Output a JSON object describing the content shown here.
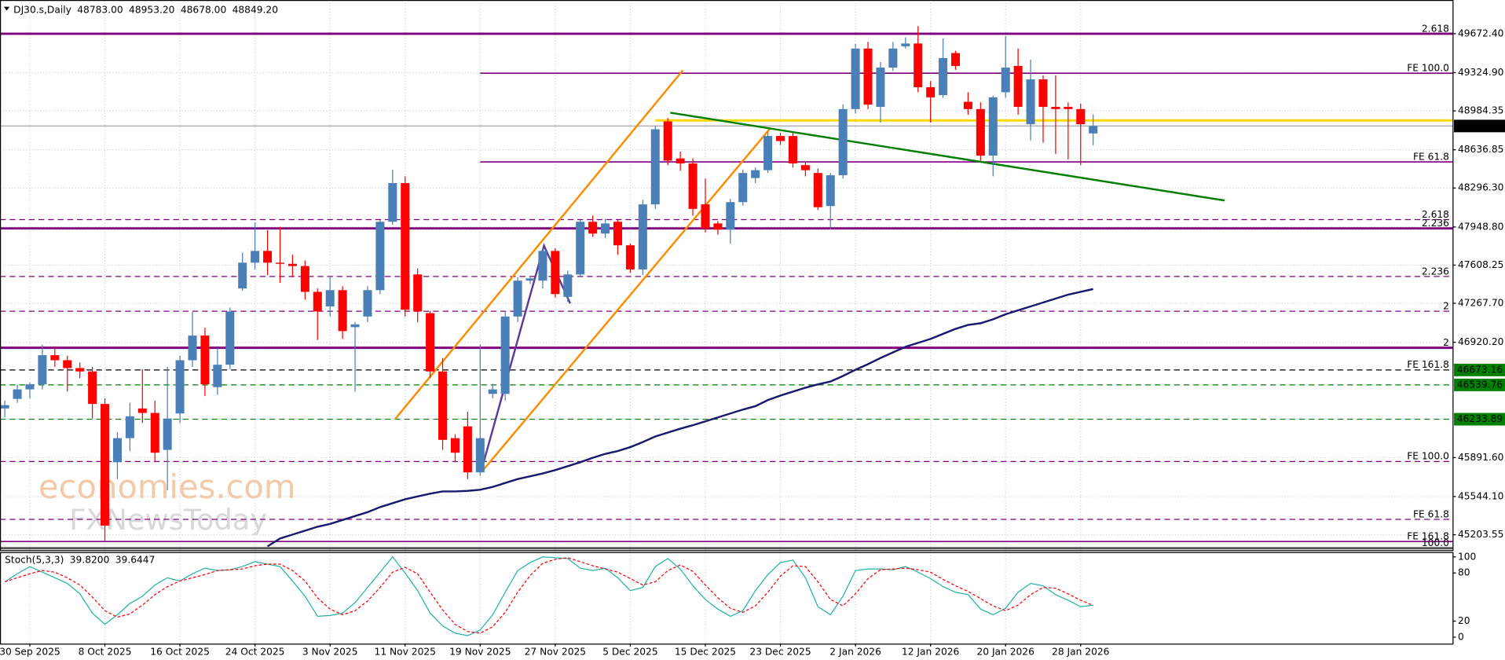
{
  "chart_data": [
    {
      "type": "candlestick",
      "title": "DJ30.s,Daily",
      "ohlc_labels": [
        {
          "value": 48783,
          "label": "48783.00"
        },
        {
          "value": 48953.2,
          "label": "48953.20"
        },
        {
          "value": 48678,
          "label": "48678.00"
        },
        {
          "value": 48849.2,
          "label": "48849.20"
        }
      ],
      "watermark": [
        "economies.com",
        "FXNewsToday"
      ],
      "up_color": "#4a7fb8",
      "down_color": "#ff0000",
      "grid": true,
      "ylim": [
        45066,
        49973
      ],
      "yticks": [
        {
          "value": 49672.4,
          "label": "49672.40"
        },
        {
          "value": 49324.9,
          "label": "49324.90"
        },
        {
          "value": 48984.35,
          "label": "48984.35"
        },
        {
          "value": 48636.85,
          "label": "48636.85"
        },
        {
          "value": 48296.3,
          "label": "48296.30"
        },
        {
          "value": 47948.8,
          "label": "47948.80"
        },
        {
          "value": 47608.25,
          "label": "47608.25"
        },
        {
          "value": 47267.7,
          "label": "47267.70"
        },
        {
          "value": 46920.2,
          "label": "46920.20"
        },
        {
          "value": 45891.6,
          "label": "45891.60"
        },
        {
          "value": 45544.1,
          "label": "45544.10"
        },
        {
          "value": 45203.55,
          "label": "45203.55"
        }
      ],
      "categories": [
        null,
        null,
        "30 Sep 2025",
        null,
        null,
        null,
        null,
        null,
        "8 Oct 2025",
        null,
        null,
        null,
        null,
        null,
        "16 Oct 2025",
        null,
        null,
        null,
        null,
        null,
        "24 Oct 2025",
        null,
        null,
        null,
        null,
        null,
        "3 Nov 2025",
        null,
        null,
        null,
        null,
        null,
        "11 Nov 2025",
        null,
        null,
        null,
        null,
        null,
        "19 Nov 2025",
        null,
        null,
        null,
        null,
        null,
        "27 Nov 2025",
        null,
        null,
        null,
        null,
        null,
        "5 Dec 2025",
        null,
        null,
        null,
        null,
        null,
        "15 Dec 2025",
        null,
        null,
        null,
        null,
        null,
        "23 Dec 2025",
        null,
        null,
        null,
        null,
        null,
        "2 Jan 2026",
        null,
        null,
        null,
        null,
        null,
        "12 Jan 2026",
        null,
        null,
        null,
        null,
        null,
        "20 Jan 2026",
        null,
        null,
        null,
        null,
        null,
        "28 Jan 2026",
        null
      ],
      "open": [
        46330,
        46415,
        46500,
        46545,
        46805,
        46760,
        46690,
        46660,
        46370,
        45850,
        46065,
        46330,
        46290,
        45960,
        46285,
        46760,
        46980,
        46520,
        46720,
        47400,
        47630,
        47735,
        47630,
        47620,
        47600,
        47370,
        47240,
        47385,
        47055,
        47150,
        47385,
        47995,
        48340,
        47525,
        47180,
        46660,
        46065,
        46170,
        45760,
        46460,
        46460,
        47150,
        47470,
        47470,
        47735,
        47325,
        47525,
        47995,
        47890,
        47995,
        47785,
        47570,
        48150,
        48890,
        48560,
        48515,
        48150,
        47980,
        47925,
        48170,
        48385,
        48455,
        48760,
        48760,
        48500,
        48430,
        48135,
        48410,
        49000,
        49540,
        49020,
        49370,
        49560,
        49585,
        49195,
        49125,
        49500,
        49065,
        49000,
        48585,
        49150,
        49385,
        48865,
        49265,
        49020,
        49020,
        49000,
        48783
      ],
      "high": [
        46400,
        46540,
        46560,
        46900,
        46880,
        46800,
        46740,
        46700,
        46420,
        46120,
        46380,
        46680,
        46400,
        46700,
        46800,
        47190,
        47050,
        46870,
        47230,
        47720,
        47990,
        47920,
        47950,
        47700,
        47650,
        47400,
        47500,
        47420,
        47100,
        47420,
        48010,
        48460,
        48400,
        47580,
        47200,
        46780,
        46100,
        46300,
        46900,
        46550,
        47200,
        47500,
        47510,
        47760,
        47760,
        47560,
        48010,
        48050,
        48020,
        48010,
        47800,
        48190,
        48850,
        48920,
        48620,
        48560,
        48380,
        48000,
        48200,
        48460,
        48480,
        48800,
        48790,
        48790,
        48530,
        48470,
        48430,
        49040,
        49580,
        49600,
        49420,
        49600,
        49640,
        49740,
        49250,
        49630,
        49520,
        49150,
        49060,
        49120,
        49650,
        49540,
        49440,
        49300,
        49300,
        49060,
        49050,
        48953.2
      ],
      "low": [
        46250,
        46380,
        46420,
        46500,
        46700,
        46480,
        46600,
        46240,
        45150,
        45700,
        45950,
        46200,
        45850,
        45600,
        46200,
        46700,
        46440,
        46450,
        46680,
        47380,
        47570,
        47520,
        47450,
        47500,
        47300,
        46940,
        47150,
        46950,
        46480,
        47100,
        47350,
        47970,
        47150,
        47100,
        46600,
        45960,
        45850,
        45700,
        45730,
        46420,
        46400,
        47100,
        47440,
        47400,
        47320,
        47280,
        47500,
        47860,
        47850,
        47700,
        47540,
        47520,
        48110,
        48500,
        48450,
        48050,
        47900,
        47880,
        47800,
        48140,
        48340,
        48430,
        48680,
        48480,
        48400,
        48100,
        47930,
        48380,
        48960,
        49000,
        48880,
        49340,
        49540,
        49150,
        48880,
        49100,
        49350,
        48950,
        48540,
        48400,
        49100,
        48950,
        48720,
        48700,
        48600,
        48550,
        48500,
        48678
      ],
      "close": [
        46360,
        46500,
        46545,
        46805,
        46760,
        46690,
        46660,
        46370,
        45285,
        46065,
        46260,
        46290,
        45935,
        46240,
        46760,
        46980,
        46545,
        46720,
        47195,
        47630,
        47735,
        47630,
        47620,
        47600,
        47370,
        47195,
        47385,
        47020,
        47080,
        47385,
        47995,
        48340,
        47210,
        47195,
        46660,
        46050,
        45935,
        45760,
        46065,
        46500,
        47150,
        47470,
        47490,
        47735,
        47350,
        47525,
        47995,
        47890,
        47980,
        47785,
        47570,
        48150,
        48820,
        48540,
        48515,
        48110,
        47935,
        47925,
        48170,
        48430,
        48455,
        48760,
        48715,
        48515,
        48455,
        48125,
        48410,
        49000,
        49540,
        49040,
        49370,
        49540,
        49585,
        49195,
        49105,
        49455,
        49385,
        49000,
        48585,
        49105,
        49370,
        49020,
        49265,
        49020,
        49000,
        49000,
        48865,
        48849.2
      ],
      "ma": {
        "color": "#191970",
        "values": [
          null,
          null,
          null,
          null,
          null,
          null,
          null,
          null,
          null,
          null,
          null,
          null,
          null,
          null,
          null,
          null,
          null,
          null,
          null,
          null,
          null,
          45100,
          45170,
          45205,
          45240,
          45275,
          45300,
          45335,
          45370,
          45405,
          45450,
          45485,
          45520,
          45545,
          45570,
          45590,
          45590,
          45595,
          45605,
          45630,
          45665,
          45700,
          45725,
          45750,
          45780,
          45815,
          45850,
          45890,
          45925,
          45950,
          45985,
          46030,
          46080,
          46115,
          46150,
          46180,
          46215,
          46250,
          46285,
          46320,
          46350,
          46405,
          46445,
          46480,
          46515,
          46545,
          46570,
          46620,
          46675,
          46725,
          46780,
          46830,
          46880,
          46915,
          46950,
          46995,
          47040,
          47075,
          47090,
          47125,
          47170,
          47205,
          47240,
          47275,
          47310,
          47345,
          47370,
          47395
        ]
      },
      "levels": [
        {
          "value": 49672,
          "label": "2.618",
          "color": "#800080",
          "style": "thick"
        },
        {
          "value": 49320,
          "label": "FE 100.0",
          "color": "#800080",
          "style": "solid",
          "from": 38
        },
        {
          "value": 48899,
          "color": "#ffd700",
          "style": "thick",
          "from": 52
        },
        {
          "value": 48849.2,
          "color": "#b0b0b0",
          "style": "solid",
          "tag": "48849.20",
          "tag_color": "#000000"
        },
        {
          "value": 48529,
          "label": "FE 61.8",
          "color": "#800080",
          "style": "solid",
          "from": 38
        },
        {
          "value": 48014,
          "label": "2.618",
          "color": "#800080",
          "style": "dashed"
        },
        {
          "value": 47936,
          "label": "2.236",
          "color": "#800080",
          "style": "thick"
        },
        {
          "value": 47507,
          "label": "2.236",
          "color": "#800080",
          "style": "dashed"
        },
        {
          "value": 47197,
          "label": "2",
          "color": "#800080",
          "style": "dashed"
        },
        {
          "value": 46871,
          "label": "2",
          "color": "#800080",
          "style": "thick"
        },
        {
          "value": 46673.16,
          "label": "FE 161.8",
          "color": "#000000",
          "style": "dashed",
          "tag": "46673.16",
          "tag_color": "#008000"
        },
        {
          "value": 46539.76,
          "color": "#008000",
          "style": "dashed",
          "tag": "46539.76",
          "tag_color": "#008000"
        },
        {
          "value": 46233.89,
          "color": "#008000",
          "style": "dashed",
          "tag": "46233.89",
          "tag_color": "#008000"
        },
        {
          "value": 45857,
          "label": "FE 100.0",
          "color": "#800080",
          "style": "dashed"
        },
        {
          "value": 45341,
          "label": "FE 61.8",
          "color": "#800080",
          "style": "dashed"
        },
        {
          "value": 45143,
          "label": "FE 161.8",
          "color": "#800080",
          "style": "solid"
        },
        {
          "value": 45083,
          "label": "100.0",
          "color": "#555555",
          "style": "thick"
        }
      ],
      "trendlines": [
        {
          "color": "#ff8c00",
          "x": [
            31.2,
            54.2
          ],
          "y": [
            46235,
            49346
          ]
        },
        {
          "color": "#ff8c00",
          "x": [
            38.1,
            61.2
          ],
          "y": [
            45762,
            48830
          ]
        },
        {
          "color": "#008000",
          "x": [
            53.2,
            97.5
          ],
          "y": [
            48968,
            48185
          ]
        },
        {
          "color": "#5b3a9c",
          "x": [
            38.1,
            43.1,
            45.2
          ],
          "y": [
            45779,
            47782,
            47266
          ]
        }
      ]
    },
    {
      "type": "line",
      "title": "Stoch(5,3,3)",
      "value_labels": [
        {
          "value": 39.82,
          "label": "39.8200"
        },
        {
          "value": 39.6447,
          "label": "39.6447"
        }
      ],
      "ylim": [
        -8,
        106
      ],
      "yticks": [
        0,
        20,
        80,
        100
      ],
      "series": [
        {
          "color": "#20b2aa",
          "style": "solid",
          "values": [
            69,
            79,
            88,
            81,
            74,
            67,
            54,
            30,
            16,
            28,
            42,
            51,
            65,
            74,
            70,
            79,
            86,
            83,
            84,
            88,
            94,
            91,
            88,
            70,
            51,
            26,
            27,
            30,
            43,
            62,
            81,
            100,
            80,
            58,
            30,
            14,
            5,
            2,
            9,
            28,
            56,
            83,
            93,
            100,
            99,
            98,
            86,
            83,
            86,
            74,
            58,
            62,
            88,
            98,
            85,
            64,
            47,
            35,
            26,
            33,
            58,
            78,
            93,
            96,
            74,
            38,
            28,
            51,
            83,
            85,
            85,
            84,
            88,
            81,
            73,
            63,
            56,
            53,
            35,
            28,
            36,
            56,
            67,
            64,
            53,
            46,
            38,
            39.82
          ]
        },
        {
          "color": "#ff0000",
          "style": "dashed",
          "values": [
            69,
            74,
            79,
            83,
            81,
            74,
            65,
            50,
            33,
            25,
            29,
            40,
            53,
            63,
            70,
            74,
            78,
            83,
            84,
            85,
            89,
            91,
            91,
            83,
            70,
            49,
            35,
            28,
            33,
            45,
            62,
            81,
            87,
            79,
            56,
            34,
            16,
            7,
            5,
            13,
            31,
            56,
            77,
            92,
            97,
            99,
            94,
            89,
            85,
            81,
            73,
            65,
            69,
            83,
            90,
            82,
            65,
            49,
            36,
            31,
            39,
            56,
            76,
            89,
            88,
            69,
            47,
            39,
            54,
            73,
            84,
            85,
            86,
            84,
            81,
            72,
            64,
            57,
            48,
            39,
            33,
            40,
            53,
            62,
            61,
            54,
            46,
            39.6447
          ]
        }
      ]
    }
  ]
}
